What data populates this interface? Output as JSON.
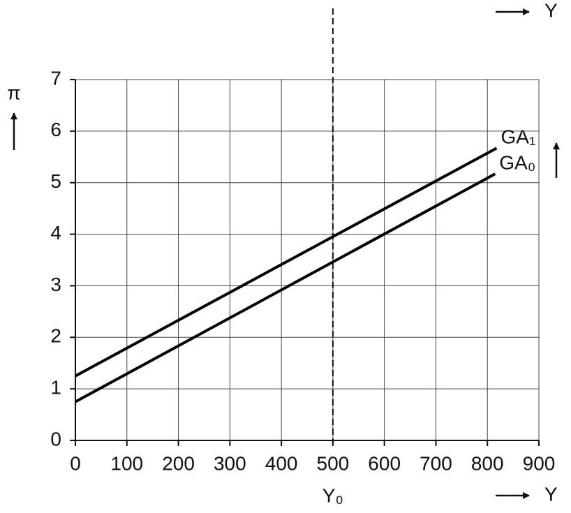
{
  "chart_data": {
    "type": "line",
    "x_label": "Y",
    "y_label": "π",
    "top_label": "Y",
    "xlim": [
      0,
      900
    ],
    "xticks": [
      0,
      100,
      200,
      300,
      400,
      500,
      600,
      700,
      800,
      900
    ],
    "ylim": [
      0,
      7
    ],
    "yticks": [
      0,
      1,
      2,
      3,
      4,
      5,
      6,
      7
    ],
    "grid": true,
    "marker": {
      "x": 500,
      "label": "Y₀"
    },
    "series": [
      {
        "name": "GA₁",
        "color": "#000000",
        "x": [
          0,
          818
        ],
        "values": [
          1.25,
          5.67
        ]
      },
      {
        "name": "GA₀",
        "color": "#000000",
        "x": [
          0,
          815
        ],
        "values": [
          0.75,
          5.17
        ]
      }
    ]
  }
}
